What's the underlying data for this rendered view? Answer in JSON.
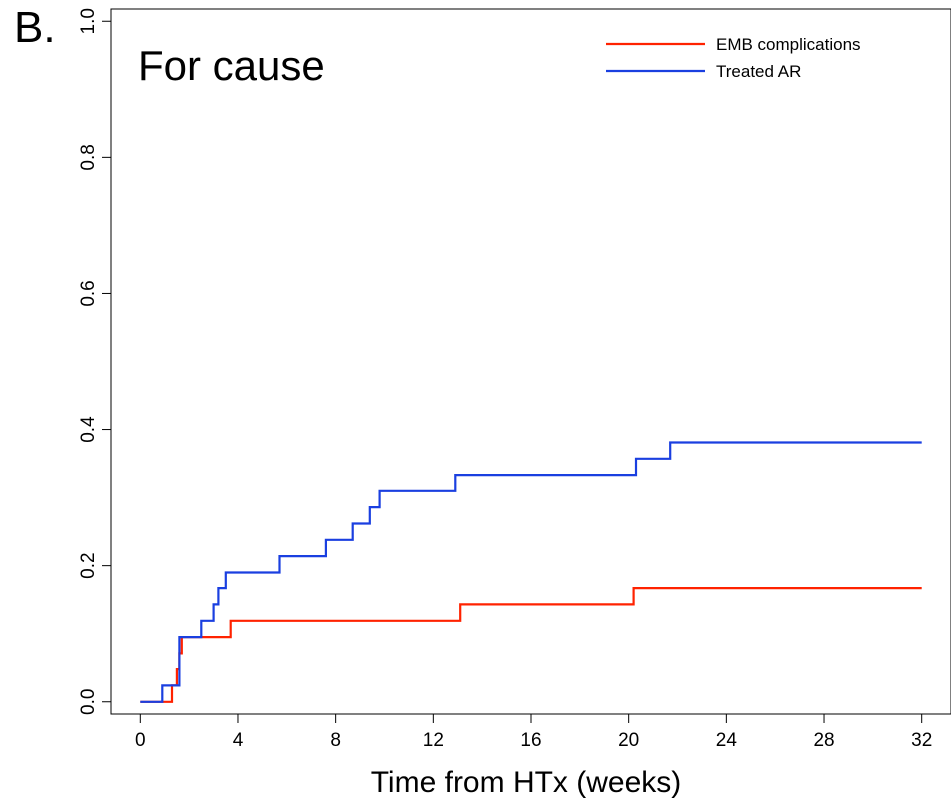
{
  "panel_label": "B.",
  "chart_data": {
    "type": "line",
    "step": true,
    "title": "For cause",
    "xlabel": "Time from HTx (weeks)",
    "ylabel": "",
    "xlim": [
      -1.2,
      33.2
    ],
    "ylim": [
      -0.018,
      1.018
    ],
    "x_ticks": [
      0,
      4,
      8,
      12,
      16,
      20,
      24,
      28,
      32
    ],
    "x_tick_labels": [
      "0",
      "4",
      "8",
      "12",
      "16",
      "20",
      "24",
      "28",
      "32"
    ],
    "y_ticks": [
      0,
      0.2,
      0.4,
      0.6,
      0.8,
      1.0
    ],
    "y_tick_labels": [
      "0.0",
      "0.2",
      "0.4",
      "0.6",
      "0.8",
      "1.0"
    ],
    "grid": false,
    "legend_position": "top-right",
    "series": [
      {
        "name": "EMB complications",
        "color": "#ff2200",
        "x": [
          0,
          1.3,
          1.5,
          1.6,
          1.7,
          3.7,
          13.1,
          20.2,
          32
        ],
        "y": [
          0,
          0.024,
          0.048,
          0.071,
          0.095,
          0.119,
          0.143,
          0.167,
          0.167
        ]
      },
      {
        "name": "Treated AR",
        "color": "#1a3fe0",
        "x": [
          0,
          0.9,
          1.6,
          2.5,
          3.0,
          3.2,
          3.5,
          5.7,
          7.6,
          8.7,
          9.4,
          9.8,
          12.9,
          20.3,
          21.7,
          32
        ],
        "y": [
          0,
          0.024,
          0.095,
          0.119,
          0.143,
          0.167,
          0.19,
          0.214,
          0.238,
          0.262,
          0.286,
          0.31,
          0.333,
          0.357,
          0.381,
          0.381
        ]
      }
    ]
  }
}
